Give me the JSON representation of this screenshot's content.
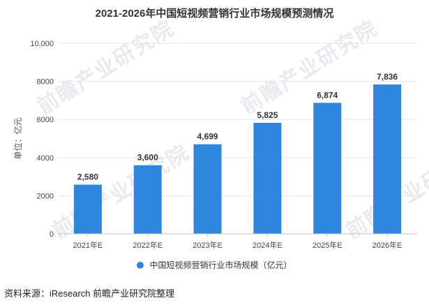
{
  "watermark": "前瞻产业研究院",
  "legend": {
    "label": "中国短视频营销行业市场规模（亿元）"
  },
  "source": "资料来源：iResearch 前瞻产业研究院整理",
  "colors": {
    "bar": "#2e86de",
    "grid": "#e6e6e6",
    "axis": "#bfbfbf"
  },
  "chart_data": {
    "type": "bar",
    "title": "2021-2026年中国短视频营销行业市场规模预测情况",
    "ylabel": "单位：亿元",
    "xlabel": "",
    "categories": [
      "2021年E",
      "2022年E",
      "2023年E",
      "2024年E",
      "2025年E",
      "2026年E"
    ],
    "values": [
      2580,
      3600,
      4699,
      5825,
      6874,
      7836
    ],
    "value_labels": [
      "2,580",
      "3,600",
      "4,699",
      "5,825",
      "6,874",
      "7,836"
    ],
    "yticks": [
      0,
      2000,
      4000,
      6000,
      8000,
      10000
    ],
    "ytick_labels": [
      "0",
      "2000",
      "4000",
      "6000",
      "8000",
      "10,000"
    ],
    "ylim": [
      0,
      10000
    ],
    "grid": true,
    "legend_position": "bottom"
  }
}
